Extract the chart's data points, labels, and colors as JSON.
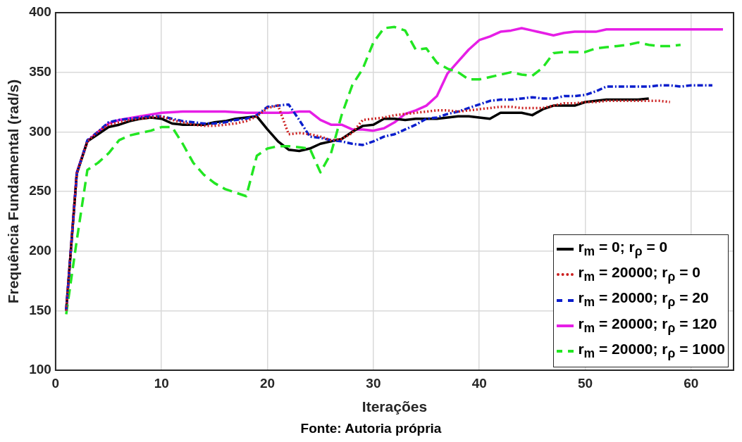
{
  "chart_data": {
    "type": "line",
    "xlabel": "Iterações",
    "ylabel": "Frequência Fundamental (rad/s)",
    "annotations": [
      "Fonte: Autoria própria"
    ],
    "xlim": [
      0,
      64
    ],
    "xticks": [
      0,
      10,
      20,
      30,
      40,
      50,
      60
    ],
    "ylim": [
      100,
      400
    ],
    "yticks": [
      100,
      150,
      200,
      250,
      300,
      350,
      400
    ],
    "grid": true,
    "legend": "bottom right",
    "marker": "none",
    "series": [
      {
        "name": "r$_{m}$ = 0; r$_{ρ}$ = 0",
        "color": "#000000",
        "line_style": "solid",
        "x": [
          1,
          2,
          3,
          4,
          5,
          6,
          7,
          8,
          9,
          10,
          11,
          12,
          13,
          14,
          15,
          16,
          17,
          18,
          19,
          20,
          21,
          22,
          23,
          24,
          25,
          26,
          27,
          28,
          29,
          30,
          31,
          32,
          33,
          34,
          35,
          36,
          37,
          38,
          39,
          40,
          41,
          42,
          43,
          44,
          45,
          46,
          47,
          48,
          49,
          50,
          51,
          52,
          53,
          54,
          55,
          56
        ],
        "values": [
          150,
          265,
          292,
          298,
          304,
          306,
          309,
          311,
          312,
          311,
          307,
          306,
          306,
          306,
          308,
          309,
          311,
          312,
          313,
          302,
          292,
          285,
          284,
          286,
          290,
          292,
          294,
          300,
          305,
          306,
          311,
          311,
          310,
          311,
          311,
          311,
          312,
          313,
          313,
          312,
          311,
          316,
          316,
          316,
          314,
          319,
          322,
          322,
          322,
          325,
          326,
          327,
          327,
          327,
          327,
          328
        ]
      },
      {
        "name": "r$_{m}$ = 20000; r$_{ρ}$ = 0",
        "color": "#cc1f1f",
        "line_style": "dotted",
        "x": [
          1,
          2,
          3,
          4,
          5,
          6,
          7,
          8,
          9,
          10,
          11,
          12,
          13,
          14,
          15,
          16,
          17,
          18,
          19,
          20,
          21,
          22,
          23,
          24,
          25,
          26,
          27,
          28,
          29,
          30,
          31,
          32,
          33,
          34,
          35,
          36,
          37,
          38,
          39,
          40,
          41,
          42,
          43,
          44,
          45,
          46,
          47,
          48,
          49,
          50,
          51,
          52,
          53,
          54,
          55,
          56,
          57,
          58
        ],
        "values": [
          150,
          265,
          292,
          300,
          306,
          308,
          310,
          311,
          312,
          313,
          310,
          308,
          306,
          305,
          305,
          306,
          307,
          309,
          313,
          320,
          322,
          298,
          299,
          298,
          296,
          293,
          294,
          299,
          310,
          311,
          312,
          314,
          315,
          316,
          317,
          318,
          318,
          317,
          318,
          319,
          320,
          321,
          321,
          320,
          320,
          320,
          322,
          324,
          324,
          325,
          325,
          326,
          326,
          326,
          326,
          326,
          326,
          325
        ]
      },
      {
        "name": "r$_{m}$ = 20000; r$_{ρ}$ = 20",
        "color": "#0a1ecc",
        "line_style": "dashdot",
        "x": [
          1,
          2,
          3,
          4,
          5,
          6,
          7,
          8,
          9,
          10,
          11,
          12,
          13,
          14,
          15,
          16,
          17,
          18,
          19,
          20,
          21,
          22,
          23,
          24,
          25,
          26,
          27,
          28,
          29,
          30,
          31,
          32,
          33,
          34,
          35,
          36,
          37,
          38,
          39,
          40,
          41,
          42,
          43,
          44,
          45,
          46,
          47,
          48,
          49,
          50,
          51,
          52,
          53,
          54,
          55,
          56,
          57,
          58,
          59,
          60,
          61,
          62
        ],
        "values": [
          150,
          265,
          293,
          300,
          308,
          310,
          311,
          312,
          313,
          313,
          311,
          309,
          308,
          307,
          307,
          308,
          310,
          311,
          314,
          321,
          322,
          323,
          310,
          296,
          295,
          293,
          292,
          290,
          289,
          292,
          296,
          298,
          302,
          306,
          311,
          312,
          315,
          317,
          320,
          323,
          326,
          327,
          327,
          328,
          329,
          328,
          328,
          330,
          330,
          331,
          334,
          338,
          338,
          338,
          338,
          338,
          339,
          339,
          338,
          339,
          339,
          339
        ]
      },
      {
        "name": "r$_{m}$ = 20000; r$_{ρ}$ = 120",
        "color": "#e61ee6",
        "line_style": "solid",
        "x": [
          1,
          2,
          3,
          4,
          5,
          6,
          8,
          10,
          12,
          14,
          16,
          18,
          20,
          21,
          22,
          23,
          24,
          25,
          26,
          27,
          28,
          29,
          30,
          31,
          32,
          33,
          34,
          35,
          36,
          37,
          38,
          39,
          40,
          41,
          42,
          43,
          44,
          45,
          46,
          47,
          48,
          49,
          50,
          51,
          52,
          53,
          54,
          55,
          56,
          57,
          58,
          59,
          60,
          61,
          62,
          63
        ],
        "values": [
          150,
          266,
          292,
          300,
          307,
          310,
          313,
          316,
          317,
          317,
          317,
          316,
          316,
          316,
          316,
          317,
          317,
          310,
          306,
          306,
          302,
          302,
          301,
          303,
          308,
          315,
          318,
          322,
          330,
          349,
          359,
          369,
          377,
          380,
          384,
          385,
          387,
          385,
          383,
          381,
          383,
          384,
          384,
          384,
          386,
          386,
          386,
          386,
          386,
          386,
          386,
          386,
          386,
          386,
          386,
          386
        ]
      },
      {
        "name": "r$_{m}$ = 20000; r$_{ρ}$ = 1000",
        "color": "#22e622",
        "line_style": "dashed",
        "x": [
          1,
          2,
          3,
          4,
          5,
          6,
          7,
          8,
          9,
          10,
          11,
          12,
          13,
          14,
          15,
          16,
          17,
          18,
          19,
          20,
          21,
          22,
          23,
          24,
          25,
          26,
          27,
          28,
          29,
          30,
          31,
          32,
          33,
          34,
          35,
          36,
          37,
          38,
          39,
          40,
          41,
          42,
          43,
          44,
          45,
          46,
          47,
          48,
          49,
          50,
          51,
          52,
          53,
          54,
          55,
          56,
          57,
          58,
          59
        ],
        "values": [
          147,
          209,
          268,
          274,
          282,
          293,
          297,
          299,
          301,
          304,
          304,
          290,
          274,
          264,
          257,
          252,
          249,
          246,
          280,
          286,
          288,
          288,
          287,
          286,
          266,
          282,
          314,
          339,
          353,
          375,
          387,
          388,
          385,
          369,
          370,
          358,
          353,
          350,
          344,
          344,
          346,
          348,
          350,
          348,
          347,
          354,
          366,
          367,
          367,
          367,
          370,
          371,
          372,
          373,
          375,
          373,
          372,
          372,
          373
        ]
      }
    ]
  }
}
